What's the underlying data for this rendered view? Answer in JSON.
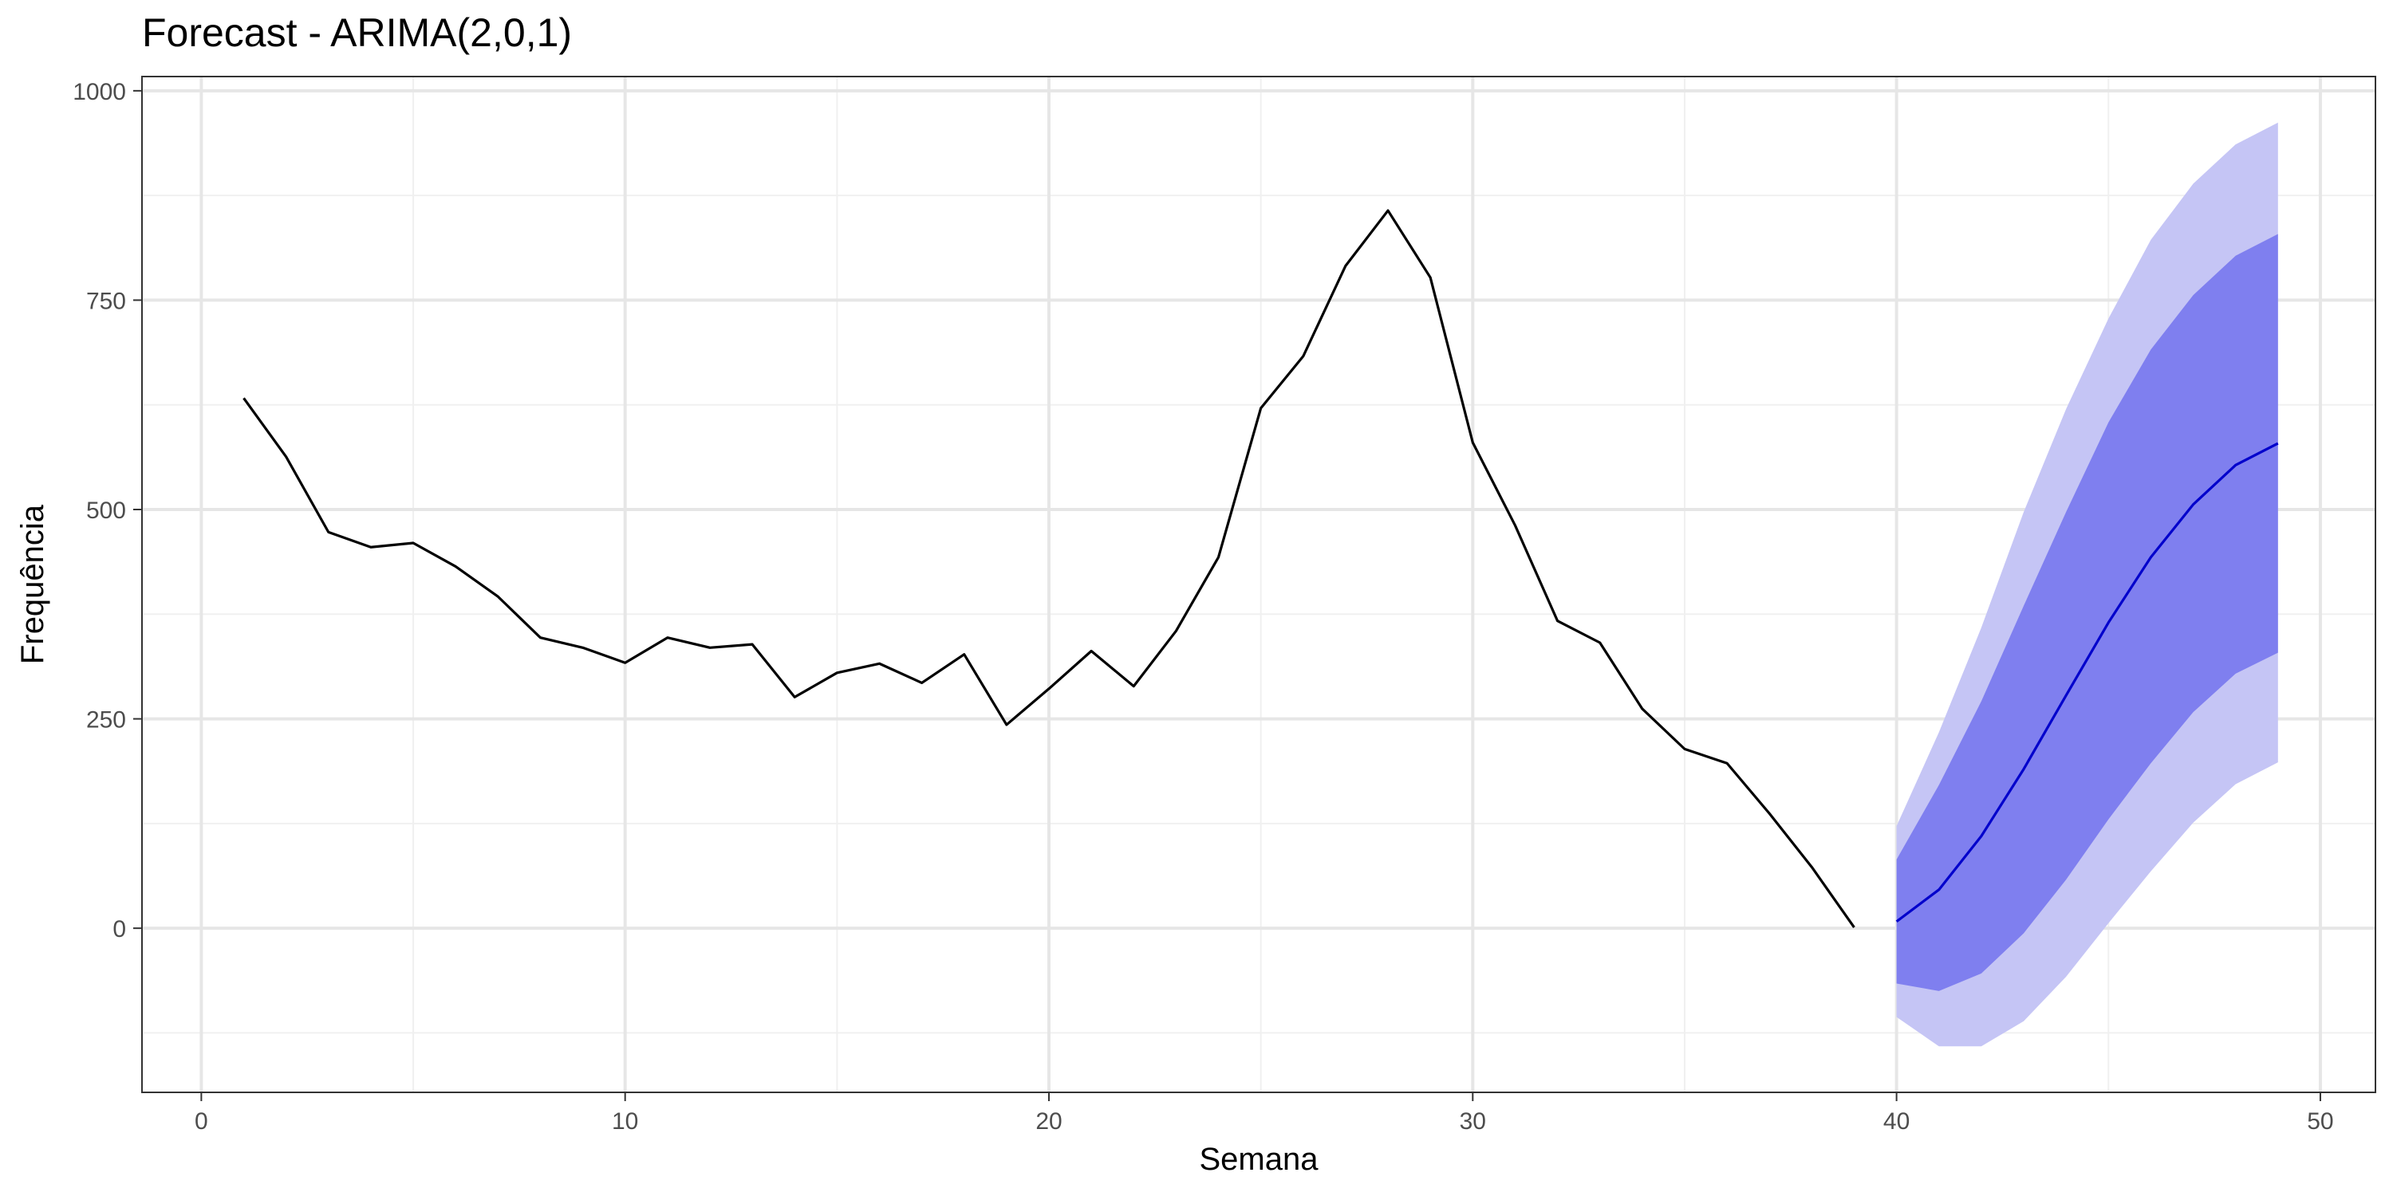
{
  "chart_data": {
    "type": "line",
    "title": "Forecast - ARIMA(2,0,1)",
    "xlabel": "Semana",
    "ylabel": "Frequência",
    "xlim": [
      -1.4,
      51.3
    ],
    "ylim": [
      -196,
      1017
    ],
    "x_ticks": [
      0,
      10,
      20,
      30,
      40,
      50
    ],
    "x_minor_ticks": [
      5,
      15,
      25,
      35,
      45
    ],
    "y_ticks": [
      0,
      250,
      500,
      750,
      1000
    ],
    "y_minor_ticks": [
      -125,
      125,
      375,
      625,
      875
    ],
    "grid": true,
    "legend": "none",
    "series": [
      {
        "role": "observed",
        "color": "#000000",
        "x": [
          1,
          2,
          3,
          4,
          5,
          6,
          7,
          8,
          9,
          10,
          11,
          12,
          13,
          14,
          15,
          16,
          17,
          18,
          19,
          20,
          21,
          22,
          23,
          24,
          25,
          26,
          27,
          28,
          29,
          30,
          31,
          32,
          33,
          34,
          35,
          36,
          37,
          38,
          39
        ],
        "values": [
          633,
          563,
          473,
          455,
          460,
          432,
          396,
          347,
          335,
          317,
          347,
          335,
          339,
          276,
          305,
          316,
          293,
          327,
          243,
          286,
          331,
          289,
          355,
          443,
          621,
          683,
          791,
          857,
          777,
          580,
          481,
          367,
          341,
          262,
          214,
          197,
          137,
          73,
          1
        ]
      },
      {
        "role": "forecast",
        "color": "#0000cc",
        "x": [
          40,
          41,
          42,
          43,
          44,
          45,
          46,
          47,
          48,
          49
        ],
        "values": [
          8,
          46,
          110,
          190,
          278,
          365,
          443,
          506,
          553,
          579
        ]
      }
    ],
    "intervals": [
      {
        "level": "95%",
        "color": "#c5c5f5",
        "x": [
          40,
          41,
          42,
          43,
          44,
          45,
          46,
          47,
          48,
          49
        ],
        "lower": [
          -106,
          -141,
          -141,
          -111,
          -58,
          6,
          68,
          126,
          172,
          198
        ],
        "upper": [
          122,
          234,
          359,
          497,
          620,
          728,
          822,
          889,
          936,
          962
        ]
      },
      {
        "level": "80%",
        "color": "#7f7fef",
        "x": [
          40,
          41,
          42,
          43,
          44,
          45,
          46,
          47,
          48,
          49
        ],
        "lower": [
          -66,
          -75,
          -54,
          -6,
          58,
          130,
          197,
          258,
          304,
          329
        ],
        "upper": [
          82,
          171,
          271,
          385,
          497,
          604,
          691,
          756,
          803,
          829
        ]
      }
    ]
  }
}
